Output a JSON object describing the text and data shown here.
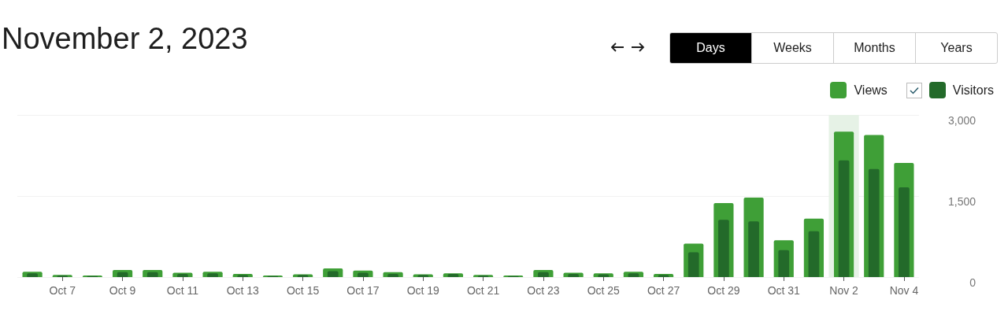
{
  "chart_data": {
    "type": "bar",
    "title": "November 2, 2023",
    "categories": [
      null,
      "Oct 7",
      null,
      "Oct 9",
      null,
      "Oct 11",
      null,
      "Oct 13",
      null,
      "Oct 15",
      null,
      "Oct 17",
      null,
      "Oct 19",
      null,
      "Oct 21",
      null,
      "Oct 23",
      null,
      "Oct 25",
      null,
      "Oct 27",
      null,
      "Oct 29",
      null,
      "Oct 31",
      null,
      "Nov 2",
      null,
      "Nov 4"
    ],
    "series": [
      {
        "name": "Views",
        "color": "#3f9f37",
        "values": [
          100,
          40,
          30,
          130,
          130,
          80,
          100,
          60,
          30,
          50,
          160,
          120,
          90,
          50,
          70,
          40,
          30,
          130,
          80,
          70,
          100,
          60,
          620,
          1370,
          1470,
          680,
          1080,
          2690,
          2630,
          2110
        ]
      },
      {
        "name": "Visitors",
        "color": "#236a2a",
        "values": [
          70,
          30,
          20,
          90,
          90,
          60,
          70,
          40,
          20,
          40,
          110,
          80,
          60,
          40,
          60,
          30,
          20,
          90,
          60,
          50,
          70,
          40,
          460,
          1060,
          1030,
          500,
          850,
          2160,
          2000,
          1660
        ]
      }
    ],
    "ylim": [
      0,
      3000
    ],
    "yticks": [
      0,
      {
        "value": 1500,
        "label": "1,500"
      },
      {
        "value": 3000,
        "label": "3,000"
      }
    ],
    "grid": "y",
    "legend": "top right",
    "bands": [
      {
        "axis": "x",
        "from": "Nov 2",
        "to": "Nov 2",
        "color": "#e6f2e6"
      }
    ],
    "annotations": [
      "Days",
      "Weeks",
      "Months",
      "Years"
    ]
  }
}
